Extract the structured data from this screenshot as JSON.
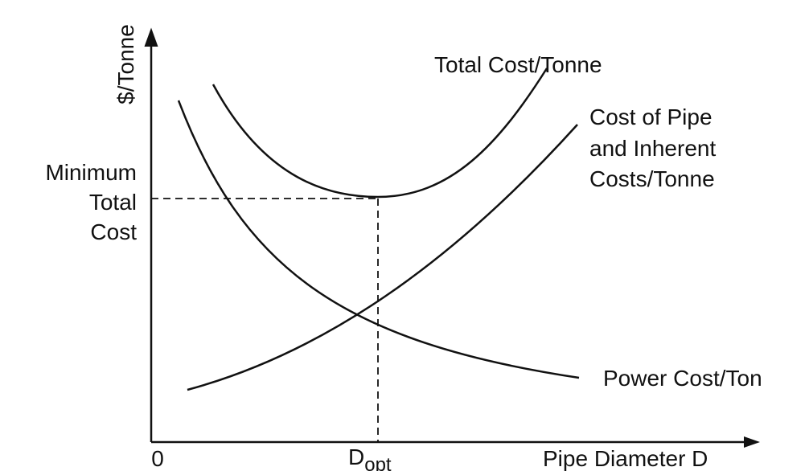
{
  "y_axis_label": "$/Tonne",
  "curves": {
    "total": "Total Cost/Tonne",
    "pipe": [
      "Cost of Pipe",
      "and Inherent",
      "Costs/Tonne"
    ],
    "power": "Power Cost/Ton"
  },
  "minimum_label": [
    "Minimum",
    "Total",
    "Cost"
  ],
  "x_axis": {
    "origin": "0",
    "d_opt": {
      "main": "D",
      "subscript": "opt"
    },
    "label": "Pipe Diameter D"
  }
}
